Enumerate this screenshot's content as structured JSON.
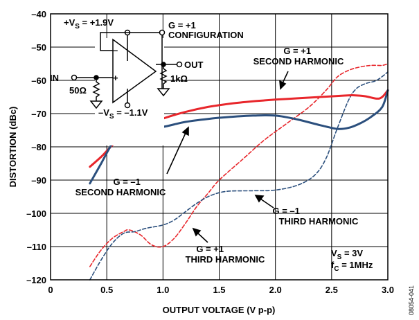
{
  "chart_data": {
    "type": "line",
    "title": "",
    "xlabel": "OUTPUT VOLTAGE (V p-p)",
    "ylabel": "DISTORTION (dBc)",
    "xlim": [
      0,
      3.0
    ],
    "ylim": [
      -120,
      -40
    ],
    "xticks": [
      "0",
      "0.5",
      "1.0",
      "1.5",
      "2.0",
      "2.5",
      "3.0"
    ],
    "yticks": [
      "–40",
      "–50",
      "–60",
      "–70",
      "–80",
      "–90",
      "–100",
      "–110",
      "–120"
    ],
    "grid": true,
    "series": [
      {
        "name": "G = +1 SECOND HARMONIC",
        "color": "#e8262b",
        "dash": false,
        "x": [
          0.35,
          0.45,
          0.55,
          0.65,
          0.75,
          0.85,
          1.0,
          1.2,
          1.4,
          1.6,
          1.8,
          2.0,
          2.2,
          2.4,
          2.6,
          2.7,
          2.8,
          2.9,
          2.95,
          3.0
        ],
        "y": [
          -86,
          -83,
          -79.5,
          -77,
          -75,
          -73.5,
          -71.5,
          -69.5,
          -68,
          -67,
          -66.3,
          -65.8,
          -65.4,
          -65,
          -64.6,
          -64.5,
          -64.8,
          -65.5,
          -65,
          -63
        ]
      },
      {
        "name": "G = –1 SECOND HARMONIC",
        "color": "#2b4f7d",
        "dash": false,
        "x": [
          0.35,
          0.45,
          0.55,
          0.65,
          0.75,
          0.85,
          1.0,
          1.2,
          1.4,
          1.6,
          1.8,
          2.0,
          2.2,
          2.4,
          2.55,
          2.65,
          2.75,
          2.85,
          2.95,
          3.0
        ],
        "y": [
          -91,
          -85,
          -79,
          -76,
          -75,
          -74.5,
          -74,
          -72.5,
          -71.6,
          -71,
          -70.6,
          -70.6,
          -71.8,
          -73.5,
          -74.6,
          -74.3,
          -73,
          -71,
          -68,
          -63
        ]
      },
      {
        "name": "G = +1 THIRD HARMONIC",
        "color": "#e8262b",
        "dash": true,
        "x": [
          0.35,
          0.45,
          0.55,
          0.65,
          0.7,
          0.8,
          0.9,
          1.0,
          1.1,
          1.2,
          1.3,
          1.4,
          1.5,
          1.7,
          1.9,
          2.1,
          2.3,
          2.45,
          2.55,
          2.65,
          2.75,
          2.85,
          2.95,
          3.0
        ],
        "y": [
          -116,
          -111,
          -107.5,
          -105.5,
          -105,
          -106.5,
          -109.5,
          -110,
          -107.5,
          -103,
          -98,
          -94,
          -90,
          -84,
          -78,
          -73,
          -68,
          -63,
          -59,
          -57,
          -56,
          -55.5,
          -55.5,
          -55
        ]
      },
      {
        "name": "G = –1 THIRD HARMONIC",
        "color": "#2b4f7d",
        "dash": true,
        "x": [
          0.35,
          0.45,
          0.55,
          0.65,
          0.75,
          0.85,
          1.0,
          1.1,
          1.2,
          1.3,
          1.4,
          1.5,
          1.6,
          1.8,
          2.0,
          2.2,
          2.35,
          2.45,
          2.55,
          2.65,
          2.72,
          2.8,
          2.9,
          3.0
        ],
        "y": [
          -120,
          -114,
          -109,
          -106,
          -105.5,
          -104.5,
          -103.5,
          -102,
          -99.5,
          -97,
          -95,
          -93.8,
          -93.3,
          -93.2,
          -93,
          -91.5,
          -88.5,
          -83.5,
          -74.5,
          -66,
          -62.5,
          -61,
          -60,
          -57.5
        ]
      }
    ],
    "annotations": [
      {
        "lines": [
          "G = +1",
          "SECOND HARMONIC"
        ]
      },
      {
        "lines": [
          "G = –1",
          "SECOND HARMONIC"
        ]
      },
      {
        "lines": [
          "G = –1",
          "THIRD HARMONIC"
        ]
      },
      {
        "lines": [
          "G = +1",
          "THIRD HARMONIC"
        ]
      }
    ],
    "conditions": [
      "V_S = 3V",
      "f_C = 1MHz"
    ],
    "figure_id": "08054-041"
  },
  "schematic": {
    "vs_pos": "+V_S = +1.9V",
    "vs_neg": "–V_S = –1.1V",
    "gain": "G = +1",
    "config": "CONFIGURATION",
    "input": "IN",
    "output": "OUT",
    "r_in": "50Ω",
    "r_load": "1kΩ",
    "minus": "–",
    "plus": "+"
  }
}
